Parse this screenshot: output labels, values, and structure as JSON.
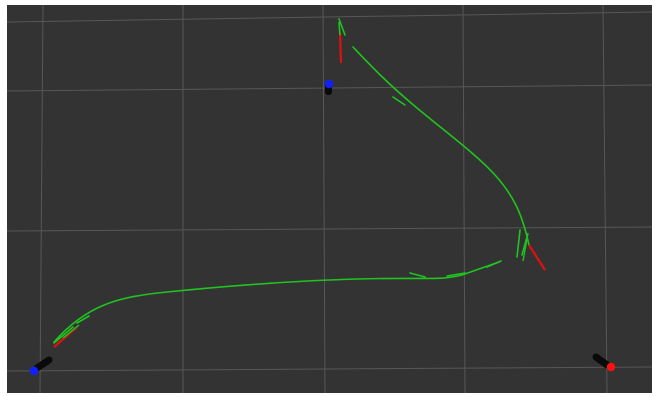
{
  "view": {
    "background": "#333333",
    "grid_color": "#555555",
    "path_color": "#1fc41f",
    "axis_x_color": "#e01010",
    "axis_y_color": "#1fc41f",
    "marker_blue": "#1020ff",
    "marker_red": "#ff1010",
    "marker_body": "#0a0a0a"
  },
  "scene": {
    "markers": [
      {
        "name": "marker-top",
        "tip": "blue-icon"
      },
      {
        "name": "marker-bottom-left",
        "tip": "blue-icon"
      },
      {
        "name": "marker-bottom-right",
        "tip": "red-icon"
      }
    ],
    "pose_arrows": [
      "pose-arrow-top",
      "pose-arrow-right",
      "pose-arrow-bottom-left"
    ]
  }
}
